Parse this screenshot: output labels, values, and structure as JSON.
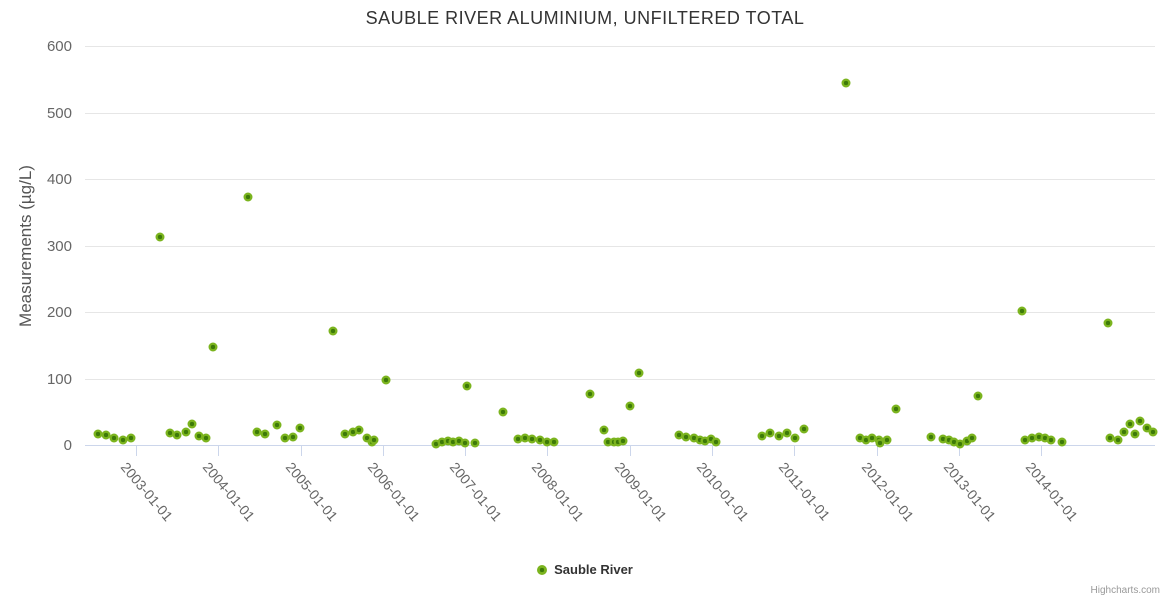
{
  "credit": "Highcharts.com",
  "colors": {
    "title": "#333333",
    "axis_label": "#666666",
    "y_axis_title": "#555555",
    "grid_line": "#e6e6e6",
    "axis_line": "#ccd6eb",
    "marker_outer": "#7bb41e",
    "marker_inner": "#3d7a08",
    "legend_text": "#333333",
    "credit_text": "#999999",
    "background": "#ffffff"
  },
  "chart_data": {
    "type": "scatter",
    "title": "SAUBLE RIVER ALUMINIUM, UNFILTERED TOTAL",
    "xlabel": "",
    "ylabel": "Measurements (µg/L)",
    "ylim": [
      0,
      600
    ],
    "y_ticks": [
      0,
      100,
      200,
      300,
      400,
      500,
      600
    ],
    "x_ticks": [
      "2003-01-01",
      "2004-01-01",
      "2005-01-01",
      "2006-01-01",
      "2007-01-01",
      "2008-01-01",
      "2009-01-01",
      "2010-01-01",
      "2011-01-01",
      "2012-01-01",
      "2013-01-01",
      "2014-01-01"
    ],
    "xmin": "2002-05-20",
    "xmax": "2015-05-20",
    "grid": true,
    "legend_position": "bottom-center",
    "series": [
      {
        "name": "Sauble River",
        "color": "#7bb41e",
        "data": [
          [
            "2002-07-15",
            17
          ],
          [
            "2002-08-20",
            15
          ],
          [
            "2002-09-27",
            10
          ],
          [
            "2002-11-03",
            7
          ],
          [
            "2002-12-10",
            10
          ],
          [
            "2003-04-16",
            313
          ],
          [
            "2003-06-01",
            18
          ],
          [
            "2003-07-04",
            15
          ],
          [
            "2003-08-10",
            20
          ],
          [
            "2003-09-06",
            31
          ],
          [
            "2003-10-09",
            13
          ],
          [
            "2003-11-10",
            10
          ],
          [
            "2003-12-07",
            148
          ],
          [
            "2004-05-11",
            373
          ],
          [
            "2004-06-20",
            20
          ],
          [
            "2004-07-26",
            16
          ],
          [
            "2004-09-17",
            30
          ],
          [
            "2004-10-24",
            11
          ],
          [
            "2004-11-26",
            12
          ],
          [
            "2004-12-30",
            26
          ],
          [
            "2005-05-25",
            172
          ],
          [
            "2005-07-18",
            17
          ],
          [
            "2005-08-20",
            20
          ],
          [
            "2005-09-18",
            23
          ],
          [
            "2005-10-21",
            10
          ],
          [
            "2005-11-13",
            5
          ],
          [
            "2005-11-24",
            7
          ],
          [
            "2006-01-14",
            97
          ],
          [
            "2006-08-24",
            1
          ],
          [
            "2006-09-20",
            4
          ],
          [
            "2006-10-15",
            6
          ],
          [
            "2006-11-07",
            5
          ],
          [
            "2006-12-05",
            6
          ],
          [
            "2006-12-30",
            3
          ],
          [
            "2007-01-09",
            89
          ],
          [
            "2007-02-13",
            3
          ],
          [
            "2007-06-20",
            49
          ],
          [
            "2007-08-24",
            9
          ],
          [
            "2007-09-23",
            10
          ],
          [
            "2007-10-23",
            9
          ],
          [
            "2007-11-30",
            8
          ],
          [
            "2007-12-29",
            5
          ],
          [
            "2008-01-31",
            4
          ],
          [
            "2008-07-09",
            77
          ],
          [
            "2008-09-08",
            22
          ],
          [
            "2008-09-24",
            5
          ],
          [
            "2008-10-21",
            4
          ],
          [
            "2008-11-11",
            5
          ],
          [
            "2008-11-30",
            6
          ],
          [
            "2009-01-03",
            58
          ],
          [
            "2009-02-12",
            109
          ],
          [
            "2009-08-05",
            15
          ],
          [
            "2009-09-07",
            12
          ],
          [
            "2009-10-11",
            10
          ],
          [
            "2009-11-09",
            8
          ],
          [
            "2009-11-30",
            6
          ],
          [
            "2009-12-29",
            9
          ],
          [
            "2010-01-18",
            5
          ],
          [
            "2010-08-12",
            13
          ],
          [
            "2010-09-15",
            18
          ],
          [
            "2010-10-25",
            14
          ],
          [
            "2010-12-01",
            18
          ],
          [
            "2011-01-03",
            11
          ],
          [
            "2011-02-13",
            24
          ],
          [
            "2011-08-16",
            545
          ],
          [
            "2011-10-19",
            10
          ],
          [
            "2011-11-16",
            7
          ],
          [
            "2011-12-13",
            10
          ],
          [
            "2012-01-10",
            8
          ],
          [
            "2012-01-16",
            3
          ],
          [
            "2012-02-14",
            7
          ],
          [
            "2012-03-27",
            54
          ],
          [
            "2012-08-29",
            12
          ],
          [
            "2012-10-23",
            9
          ],
          [
            "2012-11-19",
            7
          ],
          [
            "2012-12-11",
            4
          ],
          [
            "2013-01-06",
            1
          ],
          [
            "2013-02-04",
            6
          ],
          [
            "2013-02-28",
            10
          ],
          [
            "2013-03-25",
            74
          ],
          [
            "2013-10-07",
            202
          ],
          [
            "2013-10-22",
            7
          ],
          [
            "2013-11-21",
            10
          ],
          [
            "2013-12-21",
            12
          ],
          [
            "2014-01-19",
            10
          ],
          [
            "2014-02-13",
            7
          ],
          [
            "2014-04-03",
            4
          ],
          [
            "2014-10-22",
            184
          ],
          [
            "2014-11-03",
            10
          ],
          [
            "2014-12-06",
            8
          ],
          [
            "2015-01-04",
            20
          ],
          [
            "2015-01-29",
            31
          ],
          [
            "2015-02-22",
            17
          ],
          [
            "2015-03-15",
            36
          ],
          [
            "2015-04-14",
            26
          ],
          [
            "2015-05-10",
            20
          ]
        ]
      }
    ]
  }
}
